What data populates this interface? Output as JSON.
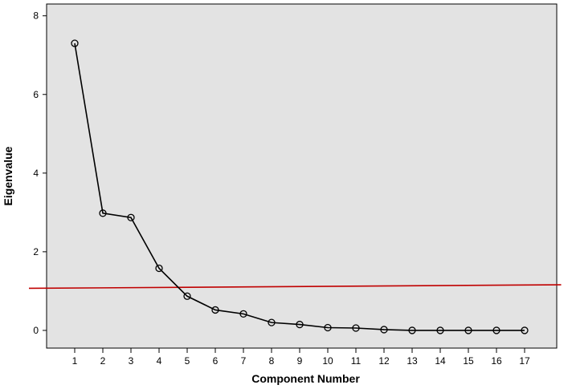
{
  "chart_data": {
    "type": "line",
    "title": "",
    "xlabel": "Component Number",
    "ylabel": "Eigenvalue",
    "x": [
      1,
      2,
      3,
      4,
      5,
      6,
      7,
      8,
      9,
      10,
      11,
      12,
      13,
      14,
      15,
      16,
      17
    ],
    "series": [
      {
        "values": [
          7.3,
          2.98,
          2.87,
          1.58,
          0.87,
          0.52,
          0.42,
          0.2,
          0.15,
          0.07,
          0.06,
          0.02,
          0.0,
          0.0,
          0.0,
          0.0,
          0.0
        ]
      }
    ],
    "ylim": [
      -0.45,
      8.3
    ],
    "xlim": [
      0,
      18
    ],
    "y_ticks": [
      0,
      2,
      4,
      6,
      8
    ],
    "x_ticks": [
      1,
      2,
      3,
      4,
      5,
      6,
      7,
      8,
      9,
      10,
      11,
      12,
      13,
      14,
      15,
      16,
      17
    ],
    "grid": false,
    "legend": "none",
    "reference_line": {
      "x": [
        0,
        18.3
      ],
      "y": [
        1.07,
        1.16
      ],
      "color": "#c00000"
    },
    "colors": {
      "plot_background": "#e3e3e3",
      "series_line": "#000000",
      "marker_stroke": "#000000"
    }
  }
}
